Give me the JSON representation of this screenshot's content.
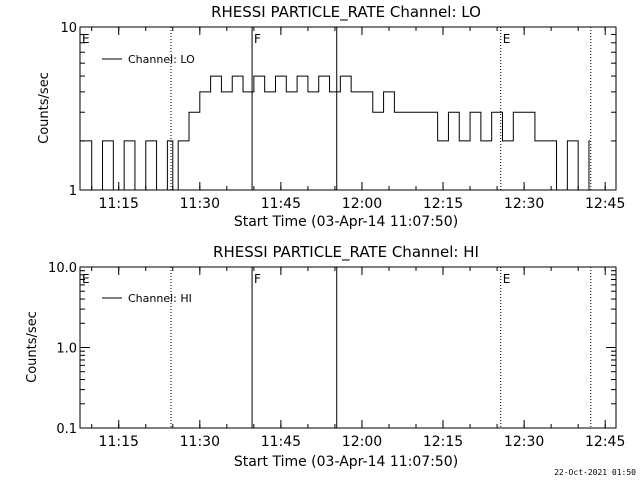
{
  "chart_data": [
    {
      "type": "line",
      "title": "RHESSI PARTICLE_RATE Channel: LO",
      "xlabel": "Start Time (03-Apr-14 11:07:50)",
      "ylabel": "Counts/sec",
      "y_scale": "log",
      "xlim": [
        "11:07:50",
        "12:47:00"
      ],
      "ylim": [
        1,
        10
      ],
      "x_tick_labels": [
        "11:15",
        "11:30",
        "11:45",
        "12:00",
        "12:15",
        "12:30",
        "12:45"
      ],
      "y_tick_labels": [
        "1",
        "10"
      ],
      "legend": "upper-left",
      "grid": false,
      "series": [
        {
          "name": "Channel: LO",
          "color": "#000000",
          "x": [
            "11:07:50",
            "11:10:00",
            "11:12:00",
            "11:14:00",
            "11:16:00",
            "11:18:00",
            "11:20:00",
            "11:22:00",
            "11:24:00",
            "11:25:00",
            "11:26:00",
            "11:27:00",
            "11:28:00",
            "11:30:00",
            "11:32:00",
            "11:34:00",
            "11:36:00",
            "11:38:00",
            "11:40:00",
            "11:42:00",
            "11:44:00",
            "11:46:00",
            "11:48:00",
            "11:50:00",
            "11:52:00",
            "11:54:00",
            "11:56:00",
            "11:58:00",
            "12:00:00",
            "12:02:00",
            "12:04:00",
            "12:06:00",
            "12:08:00",
            "12:10:00",
            "12:12:00",
            "12:14:00",
            "12:16:00",
            "12:18:00",
            "12:20:00",
            "12:22:00",
            "12:24:00",
            "12:26:00",
            "12:28:00",
            "12:30:00",
            "12:32:00",
            "12:34:00",
            "12:36:00",
            "12:38:00",
            "12:40:00",
            "12:42:00",
            "12:44:00"
          ],
          "y": [
            2,
            1,
            2,
            1,
            2,
            1,
            2,
            1,
            2,
            1,
            2,
            2,
            3,
            4,
            5,
            4,
            5,
            4,
            5,
            4,
            5,
            4,
            5,
            4,
            5,
            4,
            5,
            4,
            4,
            3,
            4,
            3,
            3,
            3,
            3,
            2,
            3,
            2,
            3,
            2,
            3,
            2,
            3,
            3,
            2,
            2,
            1,
            2,
            1,
            2,
            2
          ]
        }
      ],
      "markers": [
        {
          "label": "E",
          "x": "11:07:50",
          "line": "none"
        },
        {
          "label": "",
          "x": "11:24:40",
          "line": "dotted"
        },
        {
          "label": "F",
          "x": "11:39:40",
          "line": "solid"
        },
        {
          "label": "",
          "x": "11:55:20",
          "line": "solid"
        },
        {
          "label": "E",
          "x": "12:25:40",
          "line": "dotted"
        },
        {
          "label": "",
          "x": "12:42:20",
          "line": "dotted"
        }
      ]
    },
    {
      "type": "line",
      "title": "RHESSI PARTICLE_RATE Channel: HI",
      "xlabel": "Start Time (03-Apr-14 11:07:50)",
      "ylabel": "Counts/sec",
      "y_scale": "log",
      "xlim": [
        "11:07:50",
        "12:47:00"
      ],
      "ylim": [
        0.1,
        10
      ],
      "x_tick_labels": [
        "11:15",
        "11:30",
        "11:45",
        "12:00",
        "12:15",
        "12:30",
        "12:45"
      ],
      "y_tick_labels": [
        "0.1",
        "1.0",
        "10.0"
      ],
      "legend": "upper-left",
      "grid": false,
      "series": [
        {
          "name": "Channel: HI",
          "color": "#000000",
          "x": [],
          "y": []
        }
      ],
      "markers": [
        {
          "label": "E",
          "x": "11:07:50",
          "line": "none"
        },
        {
          "label": "",
          "x": "11:24:40",
          "line": "dotted"
        },
        {
          "label": "F",
          "x": "11:39:40",
          "line": "solid"
        },
        {
          "label": "",
          "x": "11:55:20",
          "line": "solid"
        },
        {
          "label": "E",
          "x": "12:25:40",
          "line": "dotted"
        },
        {
          "label": "",
          "x": "12:42:20",
          "line": "dotted"
        }
      ]
    }
  ],
  "footer": {
    "timestamp": "22-Oct-2021 01:50"
  }
}
